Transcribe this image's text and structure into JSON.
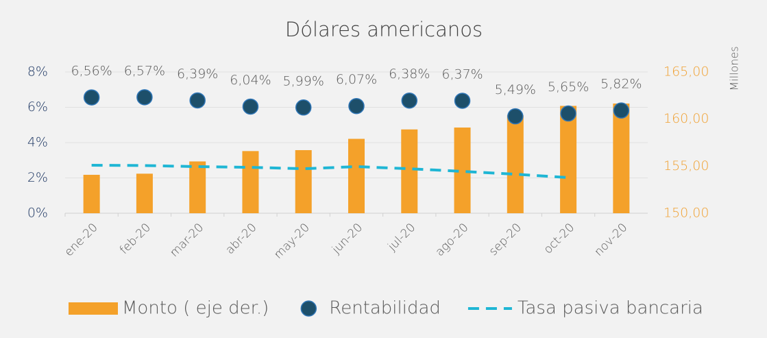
{
  "chart_data": {
    "type": "combo",
    "title": "Dólares americanos",
    "y2_label": "Millones",
    "categories": [
      "ene-20",
      "feb-20",
      "mar-20",
      "abr-20",
      "may-20",
      "jun-20",
      "jul-20",
      "ago-20",
      "sep-20",
      "oct-20",
      "nov-20"
    ],
    "series": [
      {
        "name": "Monto ( eje der.)",
        "type": "bar",
        "axis": "y2",
        "color": "#f4a12a",
        "values": [
          154.08,
          154.2,
          155.5,
          156.6,
          156.7,
          157.9,
          158.9,
          159.1,
          160.4,
          161.4,
          161.65
        ]
      },
      {
        "name": "Rentabilidad",
        "type": "scatter",
        "color": "#1d4f6a",
        "values": [
          6.56,
          6.57,
          6.39,
          6.04,
          5.99,
          6.07,
          6.38,
          6.37,
          5.49,
          5.65,
          5.82
        ],
        "value_labels": [
          "6,56%",
          "6,57%",
          "6,39%",
          "6,04%",
          "5,99%",
          "6,07%",
          "6,38%",
          "6,37%",
          "5,49%",
          "5,65%",
          "5,82%"
        ]
      },
      {
        "name": "Tasa pasiva bancaria",
        "type": "line",
        "color": "#1fb6d4",
        "values": [
          2.72,
          2.7,
          2.64,
          2.6,
          2.52,
          2.64,
          2.52,
          2.37,
          2.21,
          2.02,
          null
        ]
      }
    ],
    "ylim": [
      0,
      8
    ],
    "yticks": [
      {
        "value": 0,
        "label": "0%"
      },
      {
        "value": 2,
        "label": "2%"
      },
      {
        "value": 4,
        "label": "4%"
      },
      {
        "value": 6,
        "label": "6%"
      },
      {
        "value": 8,
        "label": "8%"
      }
    ],
    "y2lim": [
      150,
      165
    ],
    "y2ticks": [
      {
        "value": 150,
        "label": "150,00"
      },
      {
        "value": 155,
        "label": "155,00"
      },
      {
        "value": 160,
        "label": "160,00"
      },
      {
        "value": 165,
        "label": "165,00"
      }
    ],
    "grid": true
  }
}
